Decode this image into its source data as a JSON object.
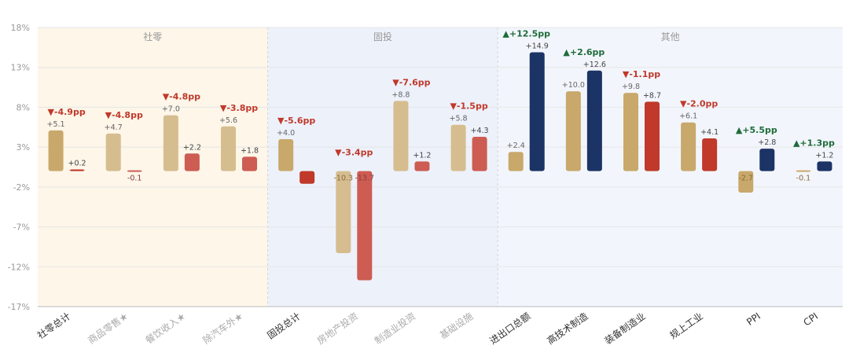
{
  "chart_data": {
    "type": "bar",
    "ylim": [
      -17,
      18
    ],
    "yticks": [
      "18%",
      "13%",
      "8%",
      "3%",
      "-2%",
      "-7%",
      "-12%",
      "-17%"
    ],
    "groups": [
      {
        "label": "社零",
        "color": "#fdf6e9"
      },
      {
        "label": "固投",
        "color": "#edf1fa"
      },
      {
        "label": "其他",
        "color": "#f2f6fc"
      }
    ],
    "categories": [
      {
        "name": "社零总计",
        "group": 0,
        "prev": 5.1,
        "curr": 0.2,
        "prev_label": "+5.1",
        "curr_label": "+0.2",
        "change": "▼-4.9pp",
        "dir": "down",
        "faded": false
      },
      {
        "name": "商品零售★",
        "group": 0,
        "prev": 4.7,
        "curr": -0.1,
        "prev_label": "+4.7",
        "curr_label": "-0.1",
        "change": "▼-4.8pp",
        "dir": "down",
        "faded": true
      },
      {
        "name": "餐饮收入★",
        "group": 0,
        "prev": 7.0,
        "curr": 2.2,
        "prev_label": "+7.0",
        "curr_label": "+2.2",
        "change": "▼-4.8pp",
        "dir": "down",
        "faded": true
      },
      {
        "name": "除汽车外★",
        "group": 0,
        "prev": 5.6,
        "curr": 1.8,
        "prev_label": "+5.6",
        "curr_label": "+1.8",
        "change": "▼-3.8pp",
        "dir": "down",
        "faded": true
      },
      {
        "name": "固投总计",
        "group": 1,
        "prev": 4.0,
        "curr": -1.6,
        "prev_label": "+4.0",
        "curr_label": "",
        "change": "▼-5.6pp",
        "dir": "down",
        "faded": false
      },
      {
        "name": "房地产投资",
        "group": 1,
        "prev": -10.3,
        "curr": -13.7,
        "prev_label": "-10.3",
        "curr_label": "-13.7",
        "change": "▼-3.4pp",
        "dir": "down",
        "faded": true
      },
      {
        "name": "制造业投资",
        "group": 1,
        "prev": 8.8,
        "curr": 1.2,
        "prev_label": "+8.8",
        "curr_label": "+1.2",
        "change": "▼-7.6pp",
        "dir": "down",
        "faded": true
      },
      {
        "name": "基础设施",
        "group": 1,
        "prev": 5.8,
        "curr": 4.3,
        "prev_label": "+5.8",
        "curr_label": "+4.3",
        "change": "▼-1.5pp",
        "dir": "down",
        "faded": true
      },
      {
        "name": "进出口总额",
        "group": 2,
        "prev": 2.4,
        "curr": 14.9,
        "prev_label": "+2.4",
        "curr_label": "+14.9",
        "change": "▲+12.5pp",
        "dir": "up",
        "faded": false
      },
      {
        "name": "高技术制造",
        "group": 2,
        "prev": 10.0,
        "curr": 12.6,
        "prev_label": "+10.0",
        "curr_label": "+12.6",
        "change": "▲+2.6pp",
        "dir": "up",
        "faded": false
      },
      {
        "name": "装备制造业",
        "group": 2,
        "prev": 9.8,
        "curr": 8.7,
        "prev_label": "+9.8",
        "curr_label": "+8.7",
        "change": "▼-1.1pp",
        "dir": "down",
        "faded": false
      },
      {
        "name": "规上工业",
        "group": 2,
        "prev": 6.1,
        "curr": 4.1,
        "prev_label": "+6.1",
        "curr_label": "+4.1",
        "change": "▼-2.0pp",
        "dir": "down",
        "faded": false
      },
      {
        "name": "PPI",
        "group": 2,
        "prev": -2.7,
        "curr": 2.8,
        "prev_label": "-2.7",
        "curr_label": "+2.8",
        "change": "▲+5.5pp",
        "dir": "up",
        "faded": false
      },
      {
        "name": "CPI",
        "group": 2,
        "prev": -0.1,
        "curr": 1.2,
        "prev_label": "-0.1",
        "curr_label": "+1.2",
        "change": "▲+1.3pp",
        "dir": "up",
        "faded": false
      }
    ],
    "colors": {
      "prev_strong": "#c9a86b",
      "prev_faded": "#d6bd8f",
      "curr_strong": "#c0392b",
      "curr_faded": "#cd5c52",
      "curr_up": "#1c3366",
      "change_down": "#c0392b",
      "change_up": "#1f6b3a",
      "label": "#555555",
      "axis": "#999999",
      "grid": "#e6e6e6"
    }
  }
}
